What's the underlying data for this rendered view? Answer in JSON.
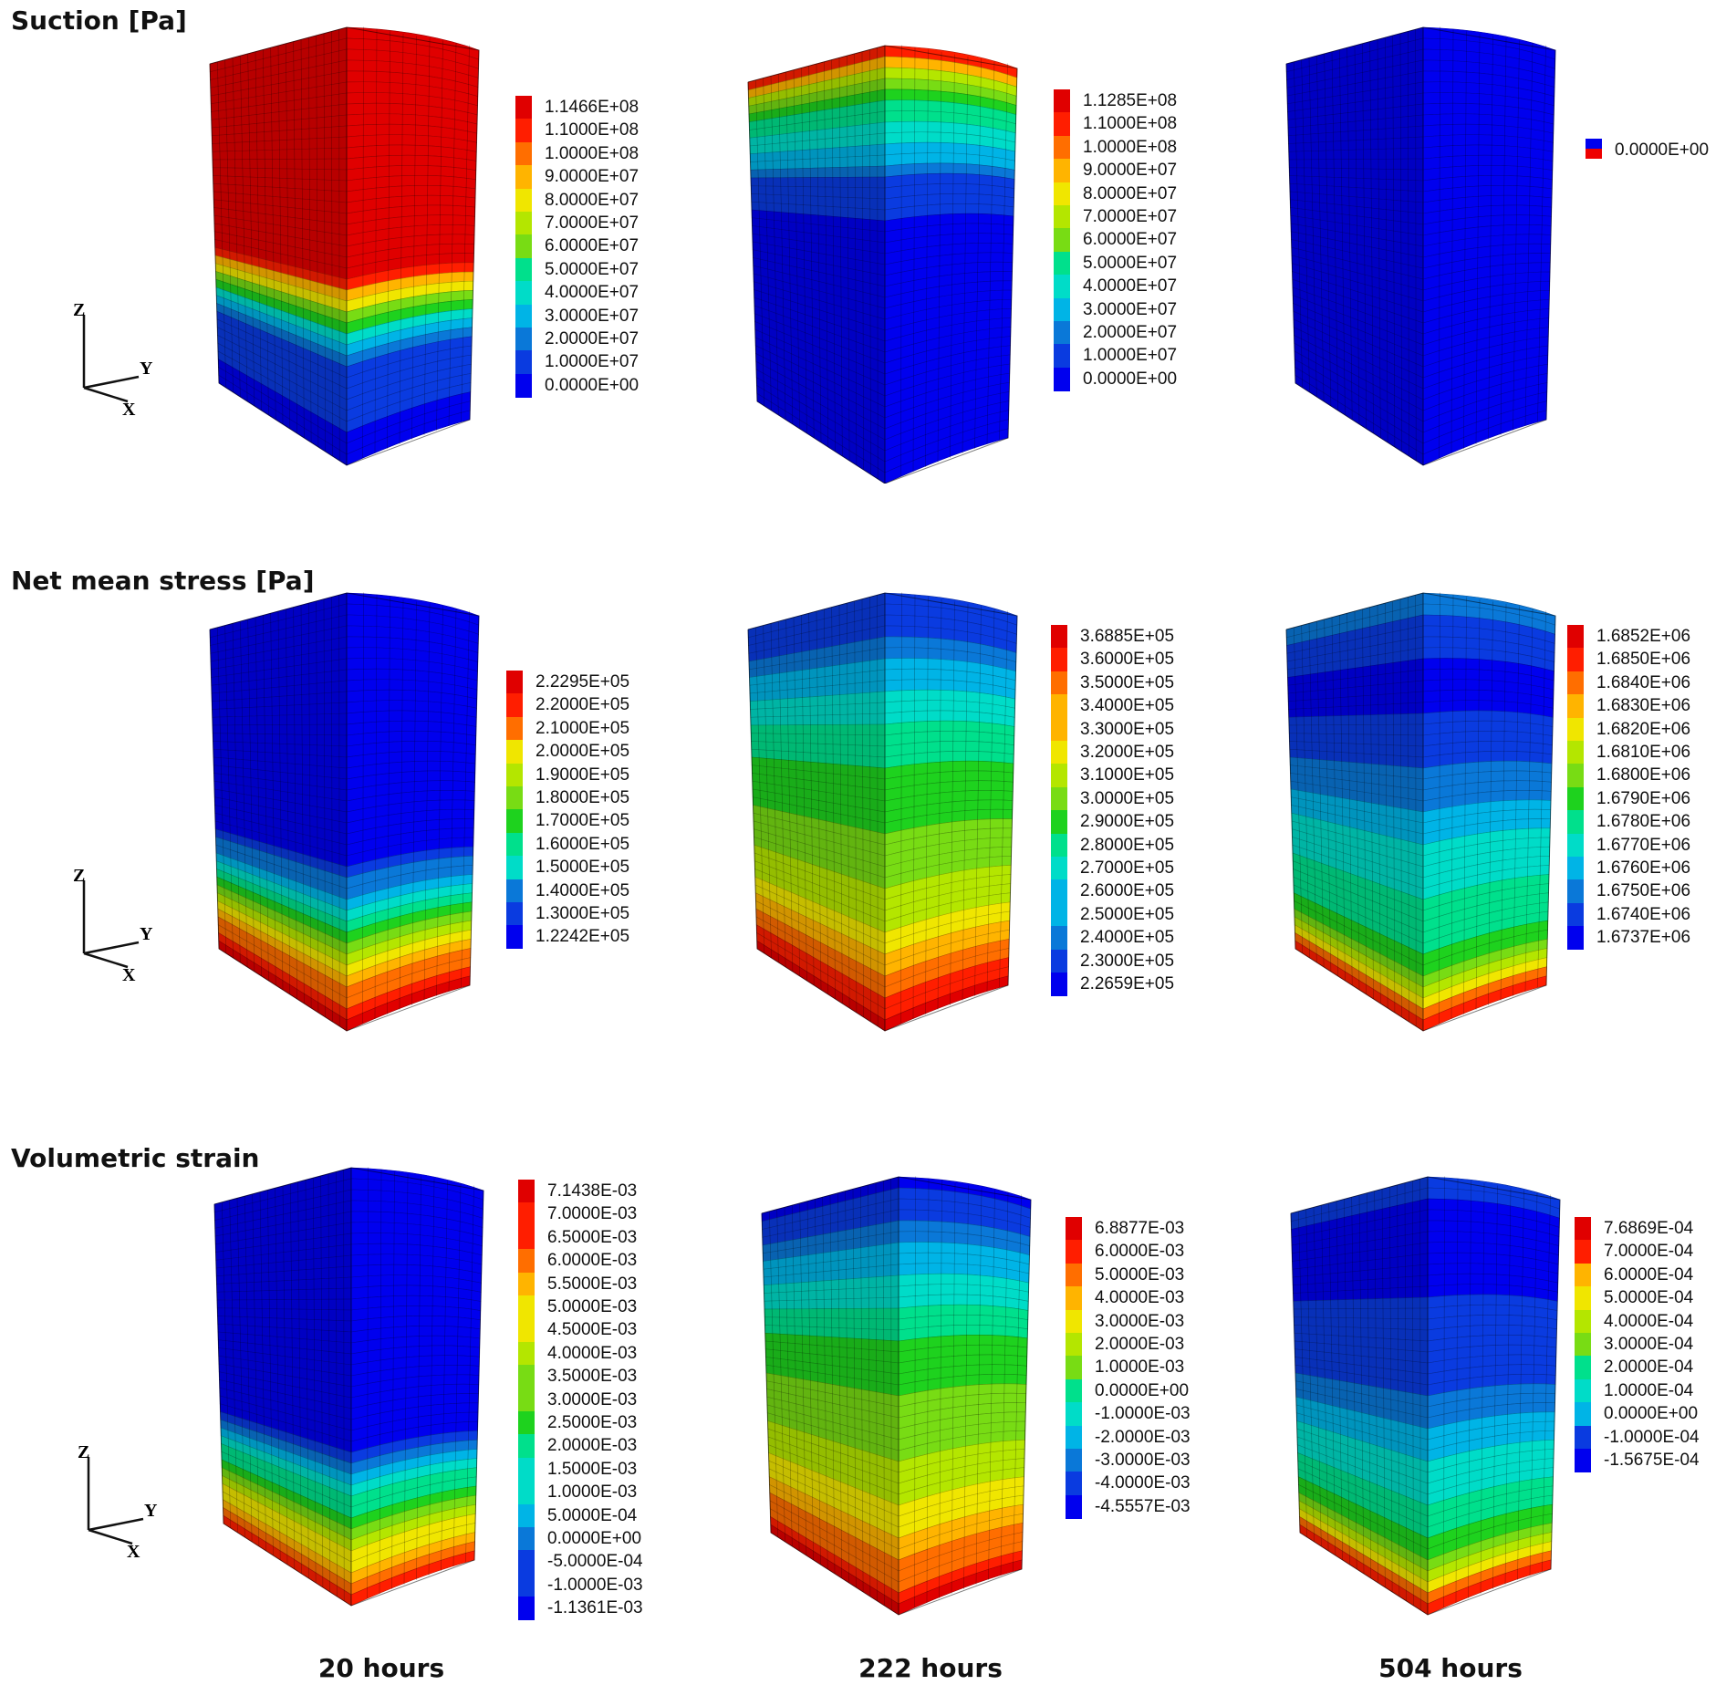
{
  "rows": [
    {
      "title": "Suction [Pa]",
      "panels": [
        {
          "legend": [
            "1.1466E+08",
            "1.1000E+08",
            "1.0000E+08",
            "9.0000E+07",
            "8.0000E+07",
            "7.0000E+07",
            "6.0000E+07",
            "5.0000E+07",
            "4.0000E+07",
            "3.0000E+07",
            "2.0000E+07",
            "1.0000E+07",
            "0.0000E+00"
          ]
        },
        {
          "legend": [
            "1.1285E+08",
            "1.1000E+08",
            "1.0000E+08",
            "9.0000E+07",
            "8.0000E+07",
            "7.0000E+07",
            "6.0000E+07",
            "5.0000E+07",
            "4.0000E+07",
            "3.0000E+07",
            "2.0000E+07",
            "1.0000E+07",
            "0.0000E+00"
          ]
        },
        {
          "legend": [
            "0.0000E+00"
          ]
        }
      ]
    },
    {
      "title": "Net mean stress [Pa]",
      "panels": [
        {
          "legend": [
            "2.2295E+05",
            "2.2000E+05",
            "2.1000E+05",
            "2.0000E+05",
            "1.9000E+05",
            "1.8000E+05",
            "1.7000E+05",
            "1.6000E+05",
            "1.5000E+05",
            "1.4000E+05",
            "1.3000E+05",
            "1.2242E+05"
          ]
        },
        {
          "legend": [
            "3.6885E+05",
            "3.6000E+05",
            "3.5000E+05",
            "3.4000E+05",
            "3.3000E+05",
            "3.2000E+05",
            "3.1000E+05",
            "3.0000E+05",
            "2.9000E+05",
            "2.8000E+05",
            "2.7000E+05",
            "2.6000E+05",
            "2.5000E+05",
            "2.4000E+05",
            "2.3000E+05",
            "2.2659E+05"
          ]
        },
        {
          "legend": [
            "1.6852E+06",
            "1.6850E+06",
            "1.6840E+06",
            "1.6830E+06",
            "1.6820E+06",
            "1.6810E+06",
            "1.6800E+06",
            "1.6790E+06",
            "1.6780E+06",
            "1.6770E+06",
            "1.6760E+06",
            "1.6750E+06",
            "1.6740E+06",
            "1.6737E+06"
          ]
        }
      ]
    },
    {
      "title": "Volumetric strain",
      "panels": [
        {
          "legend": [
            "7.1438E-03",
            "7.0000E-03",
            "6.5000E-03",
            "6.0000E-03",
            "5.5000E-03",
            "5.0000E-03",
            "4.5000E-03",
            "4.0000E-03",
            "3.5000E-03",
            "3.0000E-03",
            "2.5000E-03",
            "2.0000E-03",
            "1.5000E-03",
            "1.0000E-03",
            "5.0000E-04",
            "0.0000E+00",
            "-5.0000E-04",
            "-1.0000E-03",
            "-1.1361E-03"
          ]
        },
        {
          "legend": [
            "6.8877E-03",
            "6.0000E-03",
            "5.0000E-03",
            "4.0000E-03",
            "3.0000E-03",
            "2.0000E-03",
            "1.0000E-03",
            "0.0000E+00",
            "-1.0000E-03",
            "-2.0000E-03",
            "-3.0000E-03",
            "-4.0000E-03",
            "-4.5557E-03"
          ]
        },
        {
          "legend": [
            "7.6869E-04",
            "7.0000E-04",
            "6.0000E-04",
            "5.0000E-04",
            "4.0000E-04",
            "3.0000E-04",
            "2.0000E-04",
            "1.0000E-04",
            "0.0000E+00",
            "-1.0000E-04",
            "-1.5675E-04"
          ]
        }
      ]
    }
  ],
  "columns": [
    "20 hours",
    "222 hours",
    "504 hours"
  ],
  "axis_labels": {
    "z": "Z",
    "y": "Y",
    "x": "X"
  }
}
